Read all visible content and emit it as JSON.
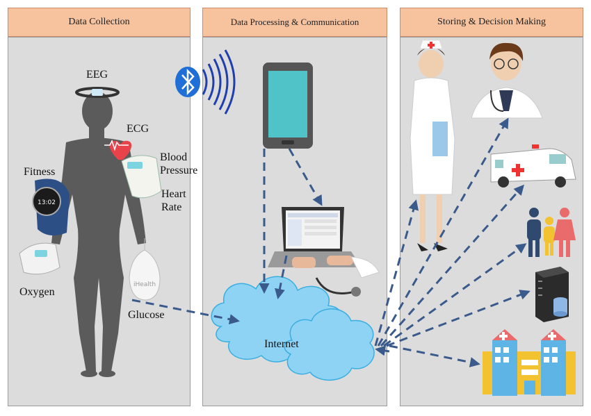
{
  "panels": [
    {
      "title": "Data Collection"
    },
    {
      "title": "Data Processing & Communication"
    },
    {
      "title": "Storing & Decision Making"
    }
  ],
  "sensors": {
    "eeg": "EEG",
    "ecg": "ECG",
    "blood": "Blood",
    "pressure": "Pressure",
    "heart": "Heart",
    "rate": "Rate",
    "fitness": "Fitness",
    "oxygen": "Oxygen",
    "glucose": "Glucose",
    "glucose_device_brand": "iHealth"
  },
  "network": {
    "internet": "Internet"
  },
  "colors": {
    "panel_bg": "#dcdcdc",
    "header_bg": "#f7c29e",
    "arrow": "#3a5a8c",
    "cloud": "#8fd3f4",
    "body_silhouette": "#5b5b5b",
    "bluetooth": "#1f6fd6"
  },
  "icons": [
    "bluetooth-icon",
    "smartphone-icon",
    "laptop-icon",
    "nurse-icon",
    "doctor-icon",
    "ambulance-icon",
    "family-icon",
    "server-icon",
    "hospital-icon"
  ]
}
